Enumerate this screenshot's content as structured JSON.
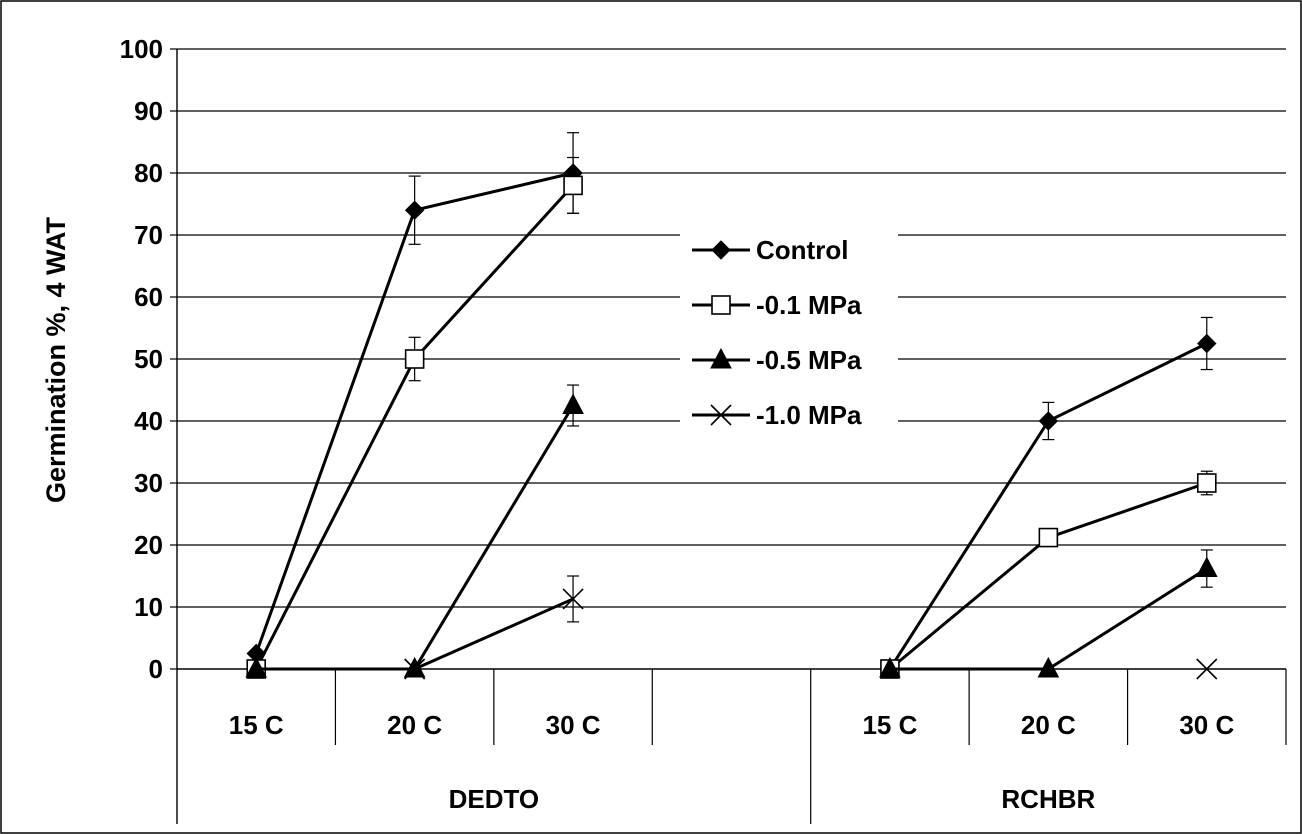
{
  "chart_data": {
    "type": "line",
    "ylabel": "Germination %, 4 WAT",
    "xlabel": "",
    "ylim": [
      0,
      100
    ],
    "yticks": [
      "0",
      "10",
      "20",
      "30",
      "40",
      "50",
      "60",
      "70",
      "80",
      "90",
      "100"
    ],
    "grid": "horizontal",
    "legend_position": "center-right",
    "groups": [
      {
        "name": "DEDTO",
        "categories": [
          "15 C",
          "20 C",
          "30 C",
          ""
        ]
      },
      {
        "name": "RCHBR",
        "categories": [
          "15 C",
          "20 C",
          "30 C"
        ]
      }
    ],
    "series": [
      {
        "name": "Control",
        "marker": "diamond-filled",
        "values": [
          [
            2.5,
            74,
            80
          ],
          [
            0,
            40,
            52.5
          ]
        ],
        "errors": [
          [
            0,
            5.5,
            6.5
          ],
          [
            0,
            3,
            4.2
          ]
        ]
      },
      {
        "name": "-0.1 MPa",
        "marker": "square-open",
        "values": [
          [
            0,
            50,
            78
          ],
          [
            0,
            21.2,
            30
          ]
        ],
        "errors": [
          [
            0,
            3.5,
            4.5
          ],
          [
            0,
            0,
            1.9
          ]
        ]
      },
      {
        "name": "-0.5 MPa",
        "marker": "triangle-filled",
        "values": [
          [
            0,
            0,
            42.5
          ],
          [
            0,
            0,
            16.2
          ]
        ],
        "errors": [
          [
            0,
            0,
            3.3
          ],
          [
            0,
            0,
            3
          ]
        ]
      },
      {
        "name": "-1.0 MPa",
        "marker": "x",
        "values": [
          [
            null,
            0,
            11.3
          ],
          [
            null,
            null,
            0
          ]
        ],
        "errors": [
          [
            0,
            0,
            3.7
          ],
          [
            0,
            0,
            0
          ]
        ]
      }
    ]
  }
}
